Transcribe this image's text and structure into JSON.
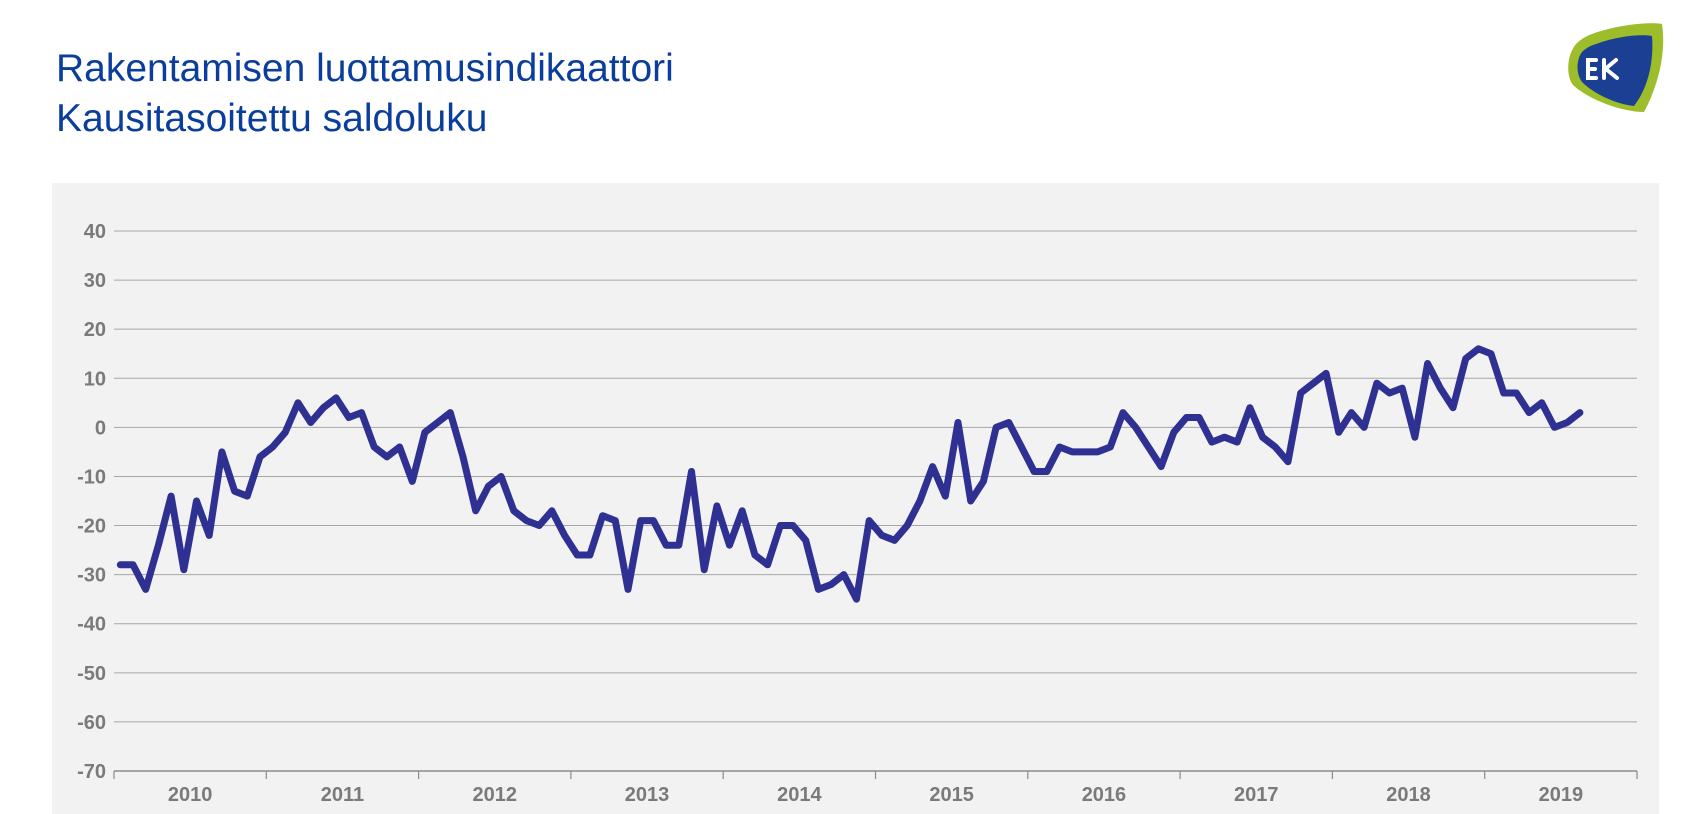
{
  "header": {
    "title": "Rakentamisen luottamusindikaattori",
    "subtitle": "Kausitasoitettu saldoluku"
  },
  "logo": {
    "text": "EK",
    "colors": {
      "outer": "#9dbd2a",
      "inner": "#1b3f93",
      "text": "#ffffff"
    }
  },
  "chart_data": {
    "type": "line",
    "title": "Rakentamisen luottamusindikaattori",
    "subtitle": "Kausitasoitettu saldoluku",
    "xlabel": "",
    "ylabel": "",
    "ylim": [
      -70,
      40
    ],
    "yticks": [
      40,
      30,
      20,
      10,
      0,
      -10,
      -20,
      -30,
      -40,
      -50,
      -60,
      -70
    ],
    "ytick_labels": [
      "40",
      "30",
      "20",
      "10",
      "0",
      "-10",
      "-20",
      "-30",
      "-40",
      "-50",
      "-60",
      "-70"
    ],
    "years": [
      "2010",
      "2011",
      "2012",
      "2013",
      "2014",
      "2015",
      "2016",
      "2017",
      "2018",
      "2019"
    ],
    "start": "2010-01",
    "frequency": "monthly",
    "grid": true,
    "legend": "none",
    "line_color": "#2e3192",
    "series": [
      {
        "values": [
          -28,
          -28,
          -33,
          -24,
          -14,
          -29,
          -15,
          -22,
          -5,
          -13,
          -14,
          -6,
          -4,
          -1,
          5,
          1,
          4,
          6,
          2,
          3,
          -4,
          -6,
          -4,
          -11,
          -1,
          1,
          3,
          -6,
          -17,
          -12,
          -10,
          -17,
          -19,
          -20,
          -17,
          -22,
          -26,
          -26,
          -18,
          -19,
          -33,
          -19,
          -19,
          -24,
          -24,
          -9,
          -29,
          -16,
          -24,
          -17,
          -26,
          -28,
          -20,
          -20,
          -23,
          -33,
          -32,
          -30,
          -35,
          -19,
          -22,
          -23,
          -20,
          -15,
          -8,
          -14,
          1,
          -15,
          -11,
          0,
          1,
          -4,
          -9,
          -9,
          -4,
          -5,
          -5,
          -5,
          -4,
          3,
          0,
          -4,
          -8,
          -1,
          2,
          2,
          -3,
          -2,
          -3,
          4,
          -2,
          -4,
          -7,
          7,
          9,
          11,
          -1,
          3,
          0,
          9,
          7,
          8,
          -2,
          13,
          8,
          4,
          14,
          16,
          15,
          7,
          7,
          3,
          5,
          0,
          1,
          3
        ]
      }
    ]
  }
}
